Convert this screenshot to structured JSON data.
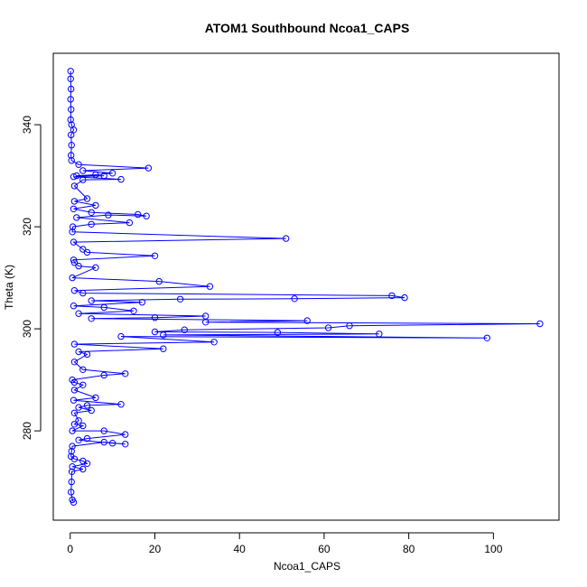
{
  "chart_data": {
    "type": "line",
    "title": "ATOM1 Southbound Ncoa1_CAPS",
    "xlabel": "Ncoa1_CAPS",
    "ylabel": "Theta (K)",
    "xlim": [
      -4,
      115.5
    ],
    "ylim": [
      262.5,
      354
    ],
    "x_ticks": [
      0,
      20,
      40,
      60,
      80,
      100
    ],
    "y_ticks": [
      280,
      300,
      320,
      340
    ],
    "marker": "open-circle",
    "line_color": "#0000ff",
    "grid": false,
    "series": [
      {
        "points": [
          [
            0.1,
            350.5
          ],
          [
            0.1,
            349
          ],
          [
            0.2,
            347
          ],
          [
            0.1,
            345
          ],
          [
            0.2,
            343
          ],
          [
            0.1,
            341
          ],
          [
            0.3,
            340
          ],
          [
            0.8,
            339
          ],
          [
            0.2,
            338
          ],
          [
            0.3,
            336
          ],
          [
            0.2,
            334
          ],
          [
            0.3,
            333
          ],
          [
            2,
            332.2
          ],
          [
            18.5,
            331.5
          ],
          [
            3,
            331
          ],
          [
            10,
            330.5
          ],
          [
            6,
            330.2
          ],
          [
            1.5,
            330
          ],
          [
            8,
            330
          ],
          [
            0.8,
            329.8
          ],
          [
            12,
            329.3
          ],
          [
            3,
            329.2
          ],
          [
            1,
            328
          ],
          [
            4,
            325.5
          ],
          [
            1,
            325
          ],
          [
            6,
            324.2
          ],
          [
            0.8,
            323.5
          ],
          [
            5,
            322.8
          ],
          [
            16,
            322.4
          ],
          [
            18,
            322.1
          ],
          [
            9,
            322.3
          ],
          [
            1.5,
            321.8
          ],
          [
            14,
            320.8
          ],
          [
            5,
            320.5
          ],
          [
            0.6,
            320
          ],
          [
            0.5,
            319
          ],
          [
            51,
            317.7
          ],
          [
            0.8,
            317
          ],
          [
            3,
            315.6
          ],
          [
            4,
            315
          ],
          [
            20,
            314.3
          ],
          [
            0.8,
            313.5
          ],
          [
            1,
            313
          ],
          [
            2,
            312.3
          ],
          [
            6,
            312
          ],
          [
            0.5,
            310
          ],
          [
            21,
            309.3
          ],
          [
            33,
            308.3
          ],
          [
            1,
            307.5
          ],
          [
            3,
            307
          ],
          [
            76,
            306.5
          ],
          [
            79,
            306.1
          ],
          [
            53,
            305.9
          ],
          [
            26,
            305.8
          ],
          [
            5,
            305.5
          ],
          [
            17,
            305.2
          ],
          [
            0.8,
            304.5
          ],
          [
            8,
            304.2
          ],
          [
            15,
            303.5
          ],
          [
            2,
            303
          ],
          [
            32,
            302.5
          ],
          [
            20,
            302.2
          ],
          [
            5,
            302
          ],
          [
            56,
            301.6
          ],
          [
            32,
            301.3
          ],
          [
            111,
            301
          ],
          [
            66,
            300.6
          ],
          [
            61,
            300.2
          ],
          [
            27,
            299.8
          ],
          [
            20,
            299.4
          ],
          [
            49,
            299.3
          ],
          [
            73,
            299
          ],
          [
            22,
            298.8
          ],
          [
            98.5,
            298.2
          ],
          [
            12,
            298.5
          ],
          [
            34,
            297.4
          ],
          [
            1,
            297
          ],
          [
            22,
            296.1
          ],
          [
            2,
            295.5
          ],
          [
            4,
            295
          ],
          [
            1,
            293.5
          ],
          [
            3,
            292
          ],
          [
            13,
            291.2
          ],
          [
            8,
            290.9
          ],
          [
            0.5,
            290
          ],
          [
            1,
            289.5
          ],
          [
            3,
            289
          ],
          [
            1,
            288
          ],
          [
            6,
            286.5
          ],
          [
            0.8,
            286
          ],
          [
            12,
            285.2
          ],
          [
            4,
            285
          ],
          [
            2,
            284.6
          ],
          [
            5,
            284
          ],
          [
            1,
            283.5
          ],
          [
            2,
            282
          ],
          [
            1,
            281.3
          ],
          [
            3,
            281
          ],
          [
            0.5,
            280
          ],
          [
            8,
            280
          ],
          [
            13,
            279.3
          ],
          [
            4,
            278.5
          ],
          [
            2,
            278.2
          ],
          [
            10,
            277.6
          ],
          [
            13,
            277.4
          ],
          [
            8,
            277.8
          ],
          [
            0.5,
            277
          ],
          [
            0.3,
            276
          ],
          [
            0.2,
            275
          ],
          [
            1,
            274.5
          ],
          [
            3,
            274.1
          ],
          [
            4,
            273.6
          ],
          [
            0.5,
            273
          ],
          [
            3,
            272.5
          ],
          [
            0.4,
            272
          ],
          [
            0.3,
            270
          ],
          [
            0.2,
            268
          ],
          [
            0.5,
            266.5
          ],
          [
            0.8,
            266
          ]
        ]
      }
    ]
  }
}
